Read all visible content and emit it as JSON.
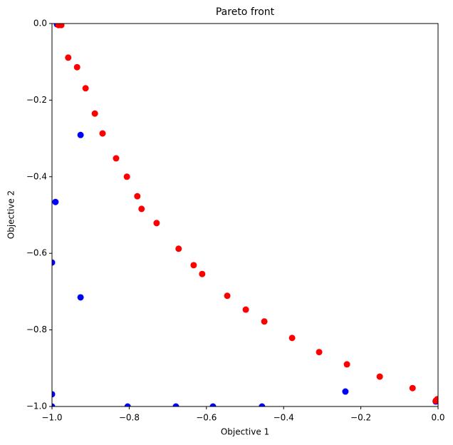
{
  "chart_data": {
    "type": "scatter",
    "title": "Pareto front",
    "x_label": "Objective 1",
    "y_label": "Objective 2",
    "xlim": [
      -1.0,
      0.0
    ],
    "ylim": [
      -1.0,
      0.0
    ],
    "xticks": [
      {
        "value": -1.0,
        "label": "−1.0"
      },
      {
        "value": -0.8,
        "label": "−0.8"
      },
      {
        "value": -0.6,
        "label": "−0.6"
      },
      {
        "value": -0.4,
        "label": "−0.4"
      },
      {
        "value": -0.2,
        "label": "−0.2"
      },
      {
        "value": 0.0,
        "label": "0.0"
      }
    ],
    "yticks": [
      {
        "value": -1.0,
        "label": "−1.0"
      },
      {
        "value": -0.8,
        "label": "−0.8"
      },
      {
        "value": -0.6,
        "label": "−0.6"
      },
      {
        "value": -0.4,
        "label": "−0.4"
      },
      {
        "value": -0.2,
        "label": "−0.2"
      },
      {
        "value": 0.0,
        "label": "0.0"
      }
    ],
    "series": [
      {
        "color": "#0000ff",
        "x": [
          -0.987,
          -0.926,
          -0.991,
          -1.0,
          -0.926,
          -1.0,
          -1.0,
          -0.804,
          -0.679,
          -0.583,
          -0.456,
          -0.24,
          -0.006
        ],
        "y": [
          -0.002,
          -0.291,
          -0.466,
          -0.624,
          -0.715,
          -0.968,
          -1.0,
          -1.0,
          -1.0,
          -1.0,
          -1.0,
          -0.961,
          -0.987
        ]
      },
      {
        "color": "#ff0000",
        "x": [
          -0.983,
          -0.976,
          -0.958,
          -0.935,
          -0.913,
          -0.889,
          -0.869,
          -0.834,
          -0.806,
          -0.779,
          -0.768,
          -0.729,
          -0.672,
          -0.633,
          -0.611,
          -0.546,
          -0.498,
          -0.45,
          -0.378,
          -0.308,
          -0.236,
          -0.151,
          -0.066,
          -0.006,
          -0.002
        ],
        "y": [
          -0.004,
          -0.004,
          -0.089,
          -0.114,
          -0.169,
          -0.235,
          -0.287,
          -0.352,
          -0.4,
          -0.451,
          -0.484,
          -0.521,
          -0.588,
          -0.631,
          -0.654,
          -0.711,
          -0.747,
          -0.778,
          -0.821,
          -0.858,
          -0.89,
          -0.922,
          -0.952,
          -0.985,
          -0.981
        ]
      }
    ]
  }
}
